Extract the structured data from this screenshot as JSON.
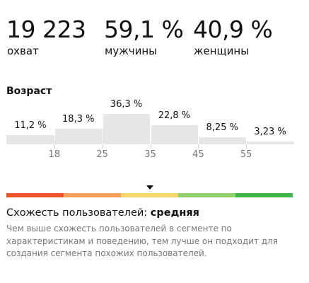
{
  "stats": {
    "reach": {
      "value": "19 223",
      "label": "охват"
    },
    "male": {
      "value": "59,1 %",
      "label": "мужчины"
    },
    "female": {
      "value": "40,9 %",
      "label": "женщины"
    }
  },
  "age": {
    "title": "Возраст",
    "groups": [
      {
        "label": "11,2 %",
        "value": 11.2
      },
      {
        "label": "18,3 %",
        "value": 18.3
      },
      {
        "label": "36,3 %",
        "value": 36.3
      },
      {
        "label": "22,8 %",
        "value": 22.8
      },
      {
        "label": "8,25 %",
        "value": 8.25
      },
      {
        "label": "3,23 %",
        "value": 3.23
      }
    ],
    "ticks": [
      "18",
      "25",
      "35",
      "45",
      "55"
    ]
  },
  "similarity": {
    "title": "Схожесть пользователей:",
    "level": "средняя",
    "level_fraction": 0.5,
    "description": "Чем выше схожесть пользователей в сегменте по характеристикам и поведению, тем лучше он подходит для создания сегмента похожих пользователей.",
    "scale_colors": [
      "#f2542d",
      "#f5a05a",
      "#f6d66a",
      "#8fd16a",
      "#3fb54a"
    ]
  }
}
